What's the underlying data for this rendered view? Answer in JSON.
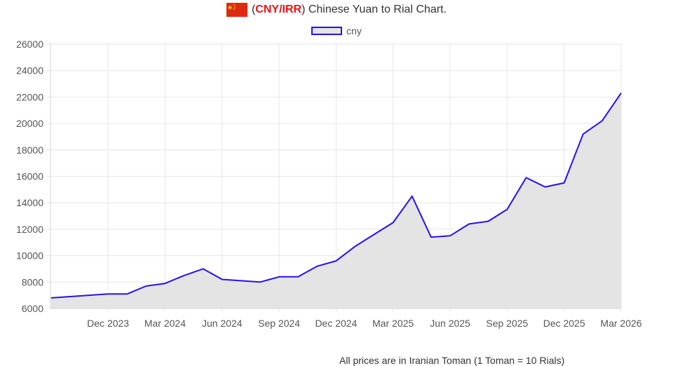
{
  "title": {
    "prefix": "(",
    "code": "CNY/IRR",
    "rest": ") Chinese Yuan to Rial Chart."
  },
  "flag_icon": "china-flag-icon",
  "footnote": "All prices are in Iranian Toman (1 Toman = 10 Rials)",
  "colors": {
    "line": "#2a0ff0",
    "fill": "#e4e4e4",
    "title_code": "#e8141c",
    "grid": "#e6e6e6"
  },
  "chart_data": {
    "type": "area",
    "title": "(CNY/IRR) Chinese Yuan to Rial Chart.",
    "xlabel": "",
    "ylabel": "",
    "ylim": [
      6000,
      26000
    ],
    "yticks": [
      6000,
      8000,
      10000,
      12000,
      14000,
      16000,
      18000,
      20000,
      22000,
      24000,
      26000
    ],
    "xticks": [
      "Dec 2023",
      "Mar 2024",
      "Jun 2024",
      "Sep 2024",
      "Dec 2024",
      "Mar 2025",
      "Jun 2025",
      "Sep 2025",
      "Dec 2025",
      "Mar 2026"
    ],
    "grid": true,
    "legend": "top-center",
    "series": [
      {
        "name": "cny",
        "x": [
          "2023-09",
          "2023-10",
          "2023-11",
          "2023-12",
          "2024-01",
          "2024-02",
          "2024-03",
          "2024-04",
          "2024-05",
          "2024-06",
          "2024-07",
          "2024-08",
          "2024-09",
          "2024-10",
          "2024-11",
          "2024-12",
          "2025-01",
          "2025-02",
          "2025-03",
          "2025-04",
          "2025-05",
          "2025-06",
          "2025-07",
          "2025-08",
          "2025-09",
          "2025-10",
          "2025-11",
          "2025-12",
          "2026-01",
          "2026-02",
          "2026-03"
        ],
        "values": [
          6800,
          6900,
          7000,
          7100,
          7100,
          7700,
          7900,
          8500,
          9000,
          8200,
          8100,
          8000,
          8400,
          8400,
          9200,
          9600,
          10700,
          11600,
          12500,
          14500,
          11400,
          11500,
          12400,
          12600,
          13500,
          15900,
          15200,
          15500,
          19200,
          20200,
          22300
        ]
      }
    ]
  }
}
